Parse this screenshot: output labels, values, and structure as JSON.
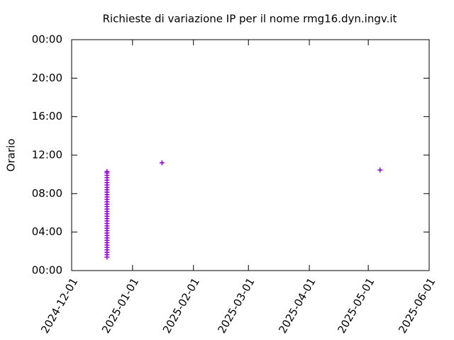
{
  "chart_data": {
    "type": "scatter",
    "title": "Richieste di variazione IP per il nome rmg16.dyn.ingv.it",
    "y_label": "Orario",
    "xlim": [
      "2024-12-01",
      "2025-06-01"
    ],
    "xticks": [
      "2024-12-01",
      "2025-01-01",
      "2025-02-01",
      "2025-03-01",
      "2025-04-01",
      "2025-05-01",
      "2025-06-01"
    ],
    "ylim": [
      0,
      24
    ],
    "yticks": [
      {
        "value": 0,
        "label": "00:00"
      },
      {
        "value": 4,
        "label": "04:00"
      },
      {
        "value": 8,
        "label": "08:00"
      },
      {
        "value": 12,
        "label": "12:00"
      },
      {
        "value": 16,
        "label": "16:00"
      },
      {
        "value": 20,
        "label": "20:00"
      },
      {
        "value": 24,
        "label": "00:00"
      }
    ],
    "series": [
      {
        "color": "#9400d3",
        "x": [
          "2024-12-19",
          "2024-12-19",
          "2024-12-19",
          "2024-12-19",
          "2024-12-19",
          "2024-12-19",
          "2024-12-19",
          "2024-12-19",
          "2024-12-19",
          "2024-12-19",
          "2024-12-19",
          "2024-12-19",
          "2024-12-19",
          "2024-12-19",
          "2024-12-19",
          "2024-12-19",
          "2024-12-19",
          "2024-12-19",
          "2024-12-19",
          "2024-12-19",
          "2024-12-19",
          "2024-12-19",
          "2024-12-19",
          "2024-12-19",
          "2024-12-19",
          "2024-12-19",
          "2024-12-19",
          "2024-12-19",
          "2024-12-19",
          "2024-12-19",
          "2024-12-19",
          "2024-12-19",
          "2024-12-19",
          "2024-12-19",
          "2024-12-19",
          "2024-12-19",
          "2024-12-19",
          "2025-01-16",
          "2025-05-07"
        ],
        "values": [
          1.4,
          1.65,
          1.9,
          2.15,
          2.4,
          2.65,
          2.9,
          3.15,
          3.4,
          3.65,
          3.9,
          4.15,
          4.4,
          4.65,
          4.9,
          5.15,
          5.4,
          5.65,
          5.9,
          6.15,
          6.4,
          6.65,
          6.9,
          7.15,
          7.4,
          7.65,
          7.9,
          8.15,
          8.4,
          8.65,
          8.9,
          9.15,
          9.4,
          9.65,
          9.9,
          10.15,
          10.3,
          11.2,
          10.45
        ]
      }
    ]
  }
}
